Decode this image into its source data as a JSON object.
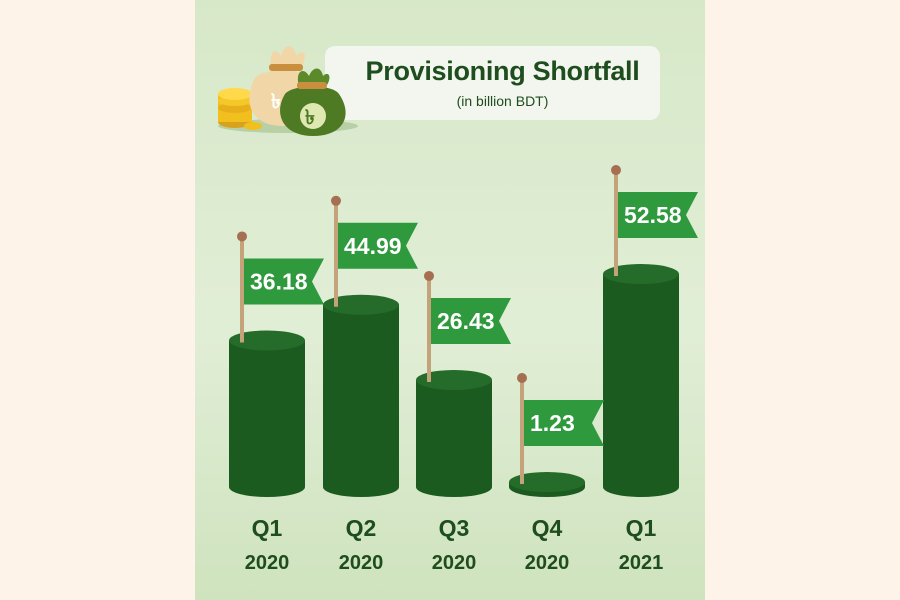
{
  "chart_data": {
    "type": "bar",
    "title": "Provisioning Shortfall",
    "subtitle": "(in billion BDT)",
    "categories": [
      {
        "quarter": "Q1",
        "year": "2020"
      },
      {
        "quarter": "Q2",
        "year": "2020"
      },
      {
        "quarter": "Q3",
        "year": "2020"
      },
      {
        "quarter": "Q4",
        "year": "2020"
      },
      {
        "quarter": "Q1",
        "year": "2021"
      }
    ],
    "values": [
      36.18,
      44.99,
      26.43,
      1.23,
      52.58
    ],
    "value_labels": [
      "36.18",
      "44.99",
      "26.43",
      "1.23",
      "52.58"
    ],
    "grid": false,
    "legend": "none"
  },
  "colors": {
    "bar": "#1b5b1f",
    "bar_top": "#256b29",
    "flag": "#2f9a3d",
    "text": "#1e4d1e",
    "panel_background": "#d9e9ca",
    "page_background": "#fdf3e9"
  },
  "icons": {
    "illustration": "money-bags-icon"
  }
}
